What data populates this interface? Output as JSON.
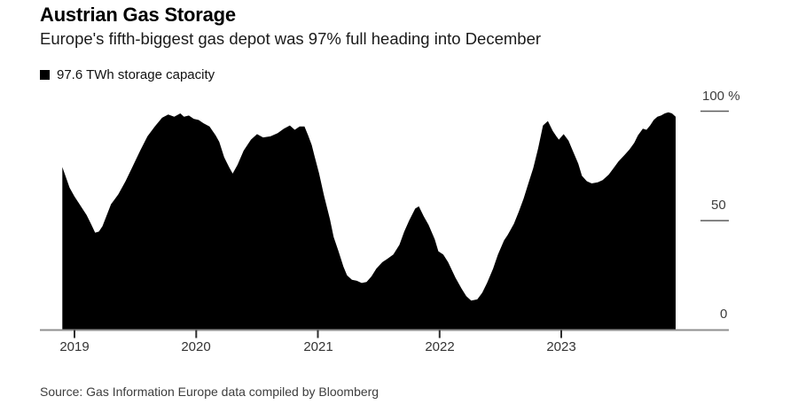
{
  "header": {
    "title": "Austrian Gas Storage",
    "subtitle": "Europe's fifth-biggest gas depot was 97% full heading into December"
  },
  "legend": {
    "swatch_color": "#000000",
    "label": "97.6 TWh storage capacity"
  },
  "footer": {
    "source": "Source: Gas Information Europe data compiled by Bloomberg"
  },
  "chart_data": {
    "type": "area",
    "title": "Austrian Gas Storage",
    "series_name": "97.6 TWh storage capacity",
    "fill_color": "#000000",
    "axis_line_color": "#8f8f8f",
    "legend_position": "top-left",
    "grid": false,
    "ylim": [
      0,
      100
    ],
    "x_range": [
      2018.9,
      2023.94
    ],
    "yticks": [
      {
        "value": 100,
        "label": "100 %"
      },
      {
        "value": 50,
        "label": "50"
      },
      {
        "value": 0,
        "label": "0"
      }
    ],
    "xticks": [
      {
        "value": 2019,
        "label": "2019"
      },
      {
        "value": 2020,
        "label": "2020"
      },
      {
        "value": 2021,
        "label": "2021"
      },
      {
        "value": 2022,
        "label": "2022"
      },
      {
        "value": 2023,
        "label": "2023"
      }
    ],
    "points": [
      [
        2018.9,
        74.5
      ],
      [
        2018.96,
        65
      ],
      [
        2019.0,
        61
      ],
      [
        2019.03,
        58.5
      ],
      [
        2019.1,
        52.5
      ],
      [
        2019.14,
        48
      ],
      [
        2019.17,
        44.5
      ],
      [
        2019.2,
        45
      ],
      [
        2019.23,
        47.5
      ],
      [
        2019.3,
        57.5
      ],
      [
        2019.36,
        62
      ],
      [
        2019.42,
        68
      ],
      [
        2019.48,
        75
      ],
      [
        2019.54,
        82
      ],
      [
        2019.6,
        88.5
      ],
      [
        2019.66,
        93
      ],
      [
        2019.72,
        97
      ],
      [
        2019.77,
        98.5
      ],
      [
        2019.82,
        97.5
      ],
      [
        2019.87,
        99
      ],
      [
        2019.9,
        97.5
      ],
      [
        2019.94,
        98
      ],
      [
        2019.98,
        96.5
      ],
      [
        2020.02,
        96
      ],
      [
        2020.06,
        94.5
      ],
      [
        2020.11,
        93
      ],
      [
        2020.16,
        89
      ],
      [
        2020.19,
        86
      ],
      [
        2020.23,
        79
      ],
      [
        2020.27,
        74.5
      ],
      [
        2020.3,
        71.5
      ],
      [
        2020.34,
        75.5
      ],
      [
        2020.39,
        82
      ],
      [
        2020.45,
        87
      ],
      [
        2020.5,
        89.5
      ],
      [
        2020.55,
        88
      ],
      [
        2020.61,
        88.5
      ],
      [
        2020.67,
        90
      ],
      [
        2020.72,
        92
      ],
      [
        2020.77,
        93.5
      ],
      [
        2020.81,
        91.5
      ],
      [
        2020.85,
        93
      ],
      [
        2020.89,
        93
      ],
      [
        2020.92,
        89
      ],
      [
        2020.95,
        84.5
      ],
      [
        2020.97,
        80
      ],
      [
        2021.01,
        71.5
      ],
      [
        2021.05,
        61.5
      ],
      [
        2021.1,
        50.5
      ],
      [
        2021.13,
        42.5
      ],
      [
        2021.17,
        36
      ],
      [
        2021.21,
        29
      ],
      [
        2021.24,
        25
      ],
      [
        2021.28,
        23
      ],
      [
        2021.32,
        22.5
      ],
      [
        2021.36,
        21.5
      ],
      [
        2021.4,
        22
      ],
      [
        2021.44,
        24.5
      ],
      [
        2021.48,
        28
      ],
      [
        2021.53,
        31
      ],
      [
        2021.57,
        32.5
      ],
      [
        2021.62,
        34.5
      ],
      [
        2021.67,
        39
      ],
      [
        2021.71,
        45
      ],
      [
        2021.75,
        50
      ],
      [
        2021.8,
        55.5
      ],
      [
        2021.83,
        56.5
      ],
      [
        2021.87,
        52
      ],
      [
        2021.91,
        48
      ],
      [
        2021.96,
        41.5
      ],
      [
        2021.99,
        36
      ],
      [
        2022.03,
        34.5
      ],
      [
        2022.07,
        31
      ],
      [
        2022.13,
        24
      ],
      [
        2022.18,
        19
      ],
      [
        2022.22,
        15.5
      ],
      [
        2022.26,
        13.5
      ],
      [
        2022.31,
        14
      ],
      [
        2022.35,
        17
      ],
      [
        2022.39,
        21.5
      ],
      [
        2022.44,
        28
      ],
      [
        2022.48,
        34.5
      ],
      [
        2022.53,
        41
      ],
      [
        2022.56,
        43.5
      ],
      [
        2022.58,
        45.5
      ],
      [
        2022.61,
        48.5
      ],
      [
        2022.65,
        54
      ],
      [
        2022.69,
        60
      ],
      [
        2022.73,
        67
      ],
      [
        2022.77,
        74
      ],
      [
        2022.81,
        83
      ],
      [
        2022.85,
        93.5
      ],
      [
        2022.89,
        95.5
      ],
      [
        2022.93,
        91
      ],
      [
        2022.96,
        88.5
      ],
      [
        2022.98,
        87
      ],
      [
        2023.02,
        89.5
      ],
      [
        2023.06,
        86.5
      ],
      [
        2023.09,
        82.5
      ],
      [
        2023.14,
        76
      ],
      [
        2023.17,
        70.5
      ],
      [
        2023.21,
        68
      ],
      [
        2023.25,
        67
      ],
      [
        2023.3,
        67.5
      ],
      [
        2023.34,
        68.5
      ],
      [
        2023.39,
        71
      ],
      [
        2023.43,
        74
      ],
      [
        2023.47,
        77
      ],
      [
        2023.52,
        80
      ],
      [
        2023.56,
        82.5
      ],
      [
        2023.6,
        85.5
      ],
      [
        2023.63,
        89
      ],
      [
        2023.67,
        92
      ],
      [
        2023.7,
        91.5
      ],
      [
        2023.73,
        93.5
      ],
      [
        2023.76,
        96
      ],
      [
        2023.79,
        97.5
      ],
      [
        2023.82,
        98
      ],
      [
        2023.85,
        99
      ],
      [
        2023.88,
        99.5
      ],
      [
        2023.91,
        99
      ],
      [
        2023.94,
        97.5
      ]
    ]
  }
}
